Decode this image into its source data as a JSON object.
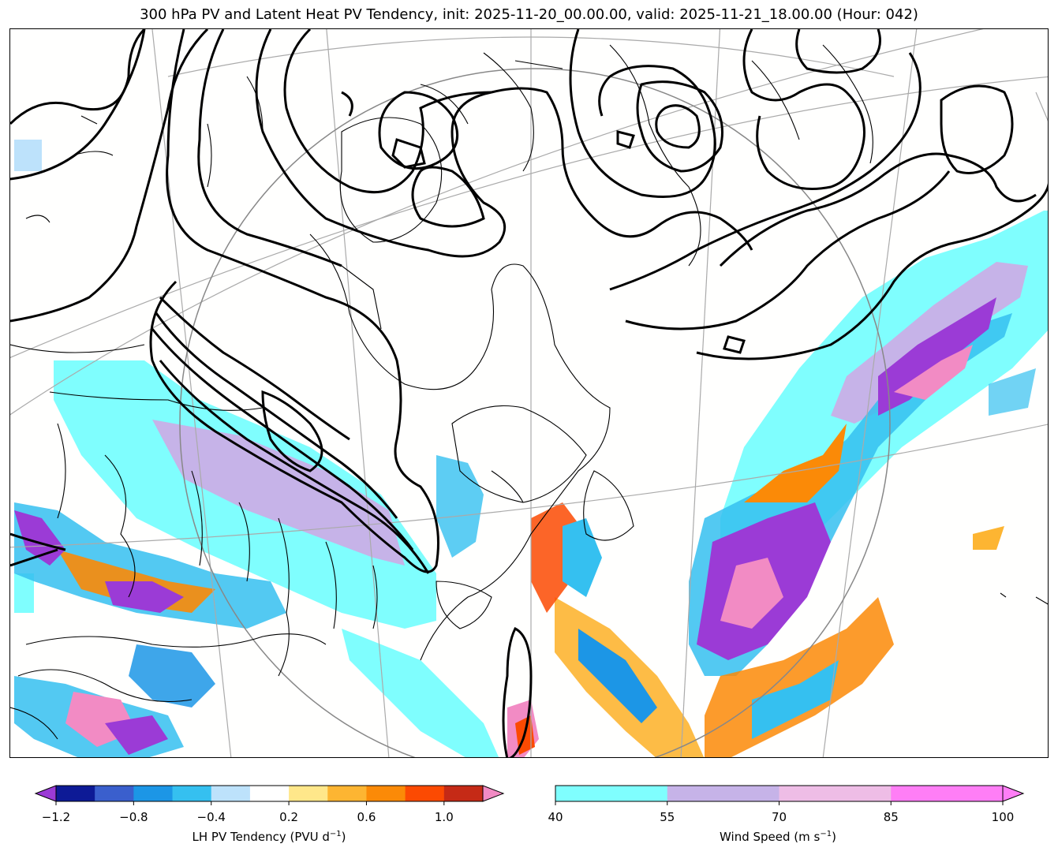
{
  "title": "300 hPa PV and Latent Heat PV Tendency, init: 2025-11-20_00.00.00, valid: 2025-11-21_18.00.00 (Hour: 042)",
  "colorbars": {
    "lh": {
      "label_text": "LH PV Tendency (PVU d",
      "label_sup": "−1",
      "label_end": ")",
      "ticks": [
        "−1.2",
        "−0.8",
        "−0.4",
        "0.2",
        "0.6",
        "1.0"
      ],
      "tick_values": [
        -1.2,
        -0.8,
        -0.4,
        0.2,
        0.6,
        1.0
      ],
      "bounds": [
        -1.2,
        -1.0,
        -0.8,
        -0.6,
        -0.4,
        -0.2,
        0.2,
        0.4,
        0.6,
        0.8,
        1.0,
        1.2
      ],
      "colors": [
        "#0d1a96",
        "#3a5fcd",
        "#1c96e6",
        "#35c0f0",
        "#bde2fb",
        "#ffffff",
        "#ffe78a",
        "#fdb532",
        "#fb8a07",
        "#fc4a02",
        "#c52a16"
      ],
      "under_color": "#9b3bd6",
      "over_color": "#f28bc4"
    },
    "wind": {
      "label_text": "Wind Speed (m s",
      "label_sup": "−1",
      "label_end": ")",
      "ticks": [
        "40",
        "55",
        "70",
        "85",
        "100"
      ],
      "tick_values": [
        40,
        55,
        70,
        85,
        100
      ],
      "bounds": [
        40,
        55,
        70,
        85,
        100
      ],
      "colors": [
        "#7ffefe",
        "#c6b3e8",
        "#eebde6",
        "#ff7ef6"
      ],
      "over_color": "#ff7ef6"
    }
  },
  "chart_data": {
    "type": "map",
    "fields": [
      "300 hPa potential vorticity (contours)",
      "latent heat PV tendency (filled)",
      "wind speed (filled)"
    ],
    "init": "2025-11-20_00.00.00",
    "valid": "2025-11-21_18.00.00",
    "forecast_hour": "042",
    "colors": {
      "pv_contour": "#000000",
      "coast": "#000000",
      "graticule": "#aaaaaa"
    }
  }
}
